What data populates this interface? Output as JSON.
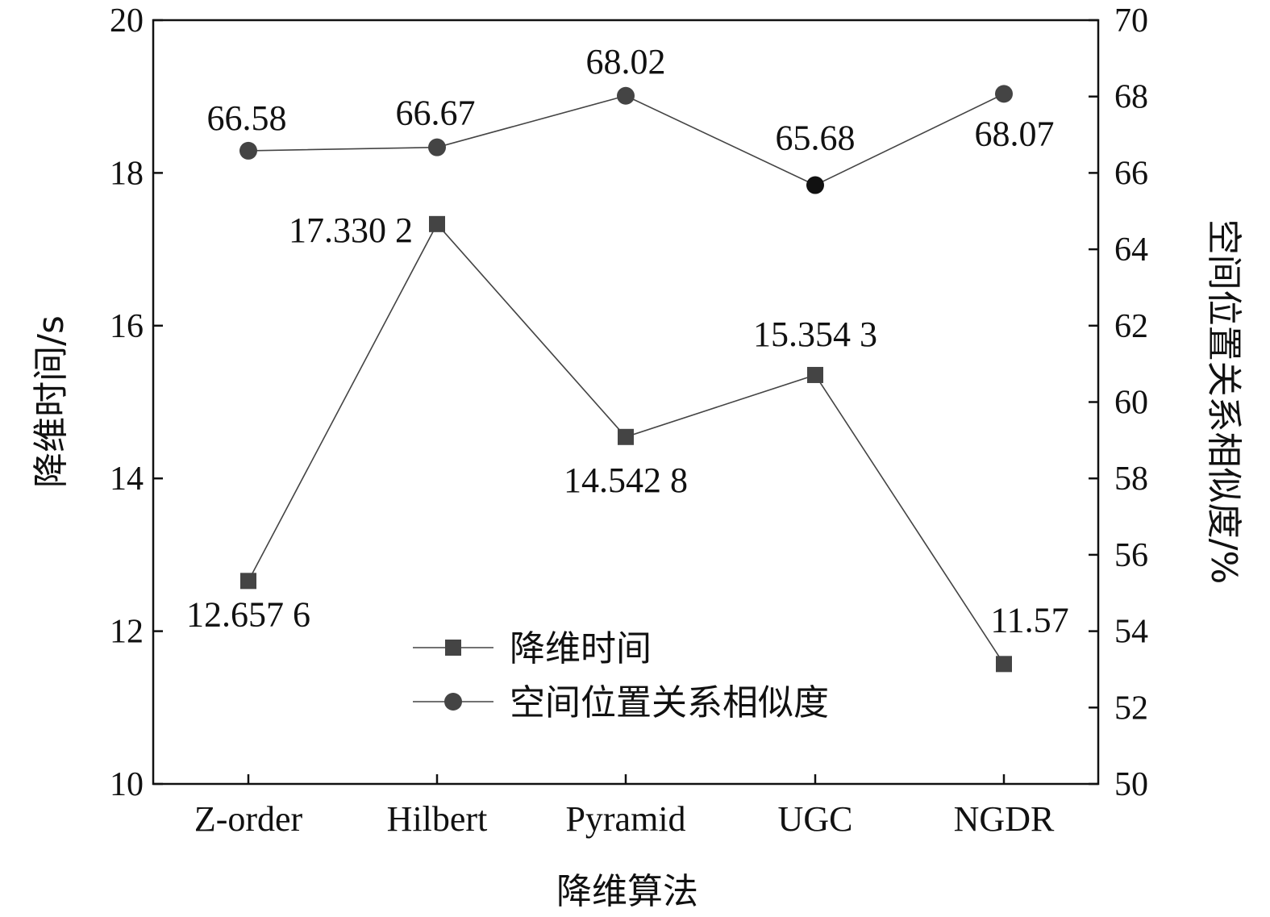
{
  "chart_data": {
    "type": "line",
    "categories": [
      "Z-order",
      "Hilbert",
      "Pyramid",
      "UGC",
      "NGDR"
    ],
    "xlabel": "降维算法",
    "ylabel_left": "降维时间/s",
    "ylabel_right": "空间位置关系相似度/%",
    "ylim_left": [
      10,
      20
    ],
    "ylim_right": [
      50,
      70
    ],
    "yticks_left": [
      "10",
      "12",
      "14",
      "16",
      "18",
      "20"
    ],
    "yticks_right": [
      "50",
      "52",
      "54",
      "56",
      "58",
      "60",
      "62",
      "64",
      "66",
      "68",
      "70"
    ],
    "grid": false,
    "legend_position": "bottom-center",
    "series": [
      {
        "name": "降维时间",
        "axis": "left",
        "marker": "square",
        "values": [
          12.6576,
          17.3302,
          14.5428,
          15.3543,
          11.57
        ],
        "labels": [
          "12.657 6",
          "17.330 2",
          "14.542 8",
          "15.354 3",
          "11.57"
        ]
      },
      {
        "name": "空间位置关系相似度",
        "axis": "right",
        "marker": "circle",
        "values": [
          66.58,
          66.67,
          68.02,
          65.68,
          68.07
        ],
        "labels": [
          "66.58",
          "66.67",
          "68.02",
          "65.68",
          "68.07"
        ]
      }
    ],
    "colors": {
      "line": "#444444",
      "marker": "#444444",
      "axis": "#111111"
    }
  }
}
